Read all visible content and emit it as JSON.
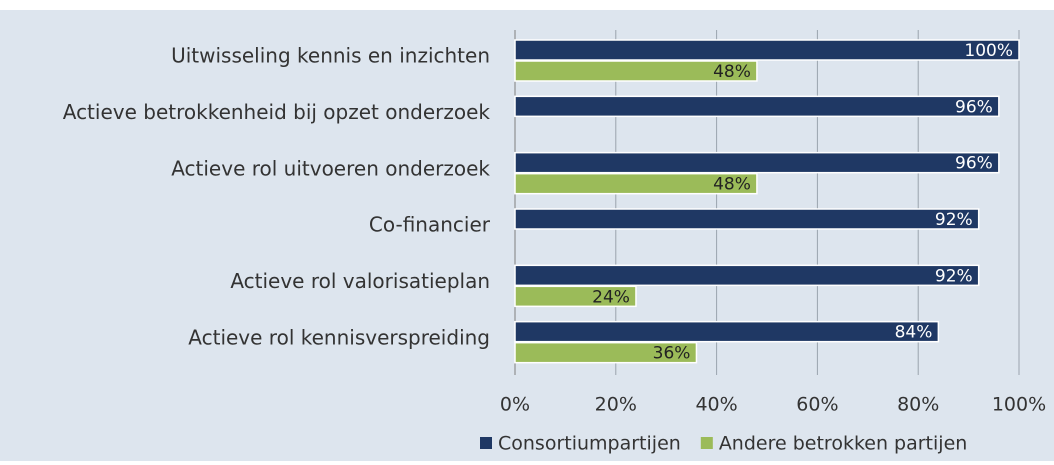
{
  "chart_data": {
    "type": "bar",
    "orientation": "horizontal",
    "categories": [
      "Uitwisseling kennis en inzichten",
      "Actieve betrokkenheid bij opzet onderzoek",
      "Actieve rol uitvoeren onderzoek",
      "Co-financier",
      "Actieve rol valorisatieplan",
      "Actieve rol kennisverspreiding"
    ],
    "series": [
      {
        "name": "Consortiumpartijen",
        "color": "#1f3864",
        "values": [
          100,
          96,
          96,
          92,
          92,
          84
        ],
        "value_labels": [
          "100%",
          "96%",
          "96%",
          "92%",
          "92%",
          "84%"
        ]
      },
      {
        "name": "Andere betrokken partijen",
        "color": "#9bbb59",
        "values": [
          48,
          null,
          48,
          null,
          24,
          36
        ],
        "value_labels": [
          "48%",
          null,
          "48%",
          null,
          "24%",
          "36%"
        ]
      }
    ],
    "xlim": [
      0,
      100
    ],
    "xticks": [
      {
        "value": 0,
        "label": "0%"
      },
      {
        "value": 20,
        "label": "20%"
      },
      {
        "value": 40,
        "label": "40%"
      },
      {
        "value": 60,
        "label": "60%"
      },
      {
        "value": 80,
        "label": "80%"
      },
      {
        "value": 100,
        "label": "100%"
      }
    ],
    "grid": true,
    "legend": "bottom"
  }
}
